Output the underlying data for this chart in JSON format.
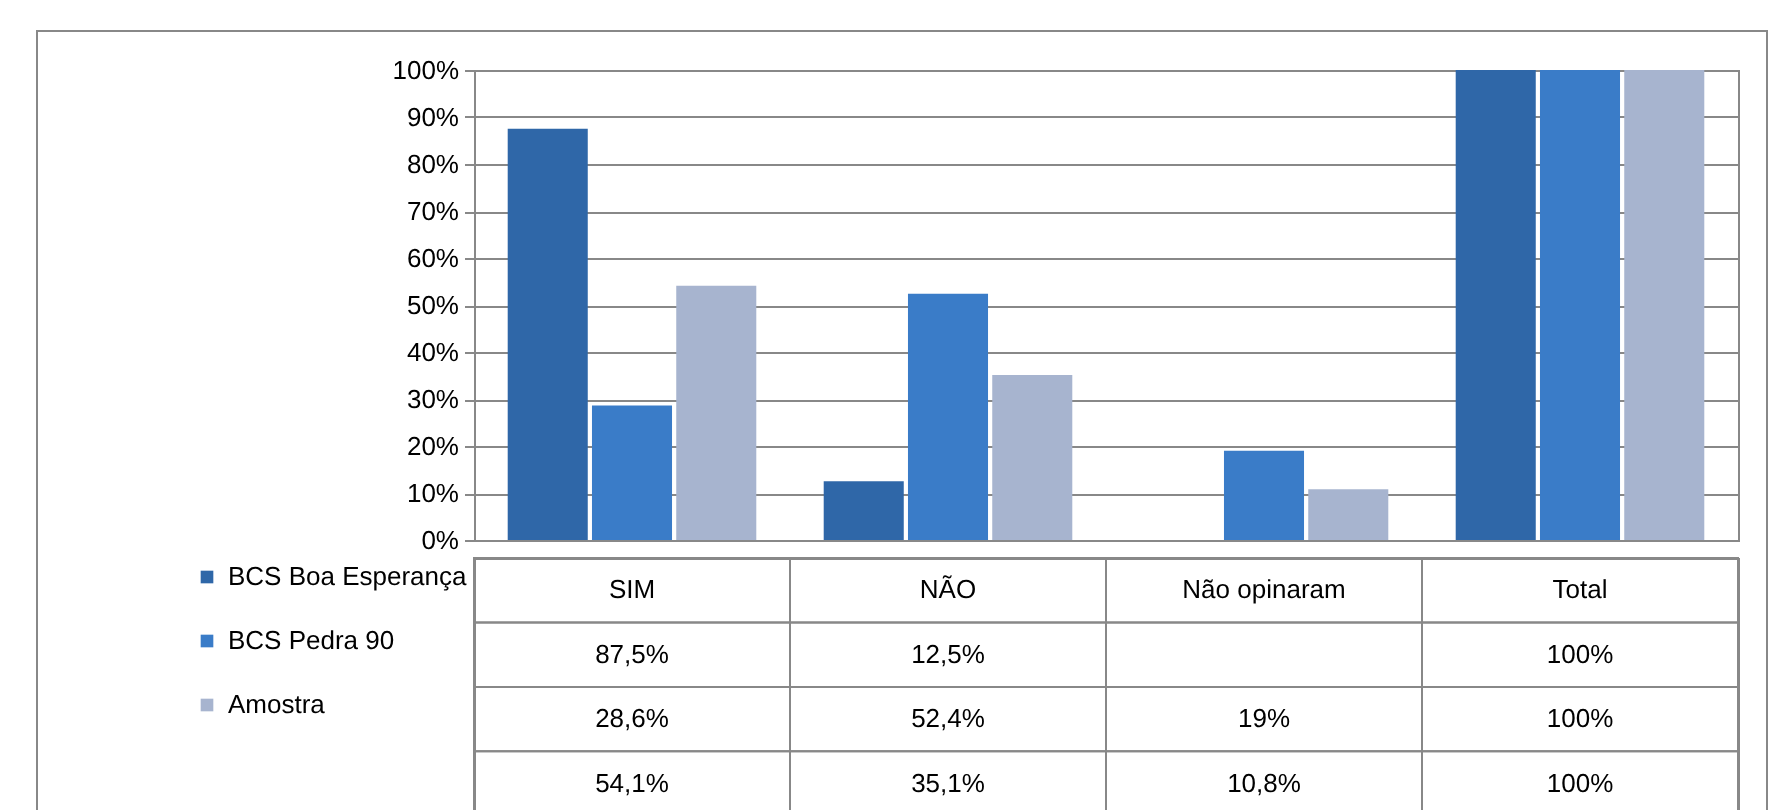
{
  "chart_data": {
    "type": "bar",
    "categories": [
      "SIM",
      "NÃO",
      "Não opinaram",
      "Total"
    ],
    "series": [
      {
        "name": "BCS Boa Esperança",
        "color": "#2f67a8",
        "values": [
          87.5,
          12.5,
          null,
          100
        ],
        "value_labels": [
          "87,5%",
          "12,5%",
          null,
          "100%"
        ]
      },
      {
        "name": "BCS Pedra 90",
        "color": "#3a7cc8",
        "values": [
          28.6,
          52.4,
          19,
          100
        ],
        "value_labels": [
          "28,6%",
          "52,4%",
          "19%",
          "100%"
        ]
      },
      {
        "name": "Amostra",
        "color": "#a7b4cf",
        "values": [
          54.1,
          35.1,
          10.8,
          100
        ],
        "value_labels": [
          "54,1%",
          "35,1%",
          "10,8%",
          "100%"
        ]
      }
    ],
    "ylim": [
      0,
      100
    ],
    "yticks": [
      {
        "value": 0,
        "label": "0%"
      },
      {
        "value": 10,
        "label": "10%"
      },
      {
        "value": 20,
        "label": "20%"
      },
      {
        "value": 30,
        "label": "30%"
      },
      {
        "value": 40,
        "label": "40%"
      },
      {
        "value": 50,
        "label": "50%"
      },
      {
        "value": 60,
        "label": "60%"
      },
      {
        "value": 70,
        "label": "70%"
      },
      {
        "value": 80,
        "label": "80%"
      },
      {
        "value": 90,
        "label": "90%"
      },
      {
        "value": 100,
        "label": "100%"
      }
    ],
    "grid": "y",
    "legend": "bottom left"
  }
}
